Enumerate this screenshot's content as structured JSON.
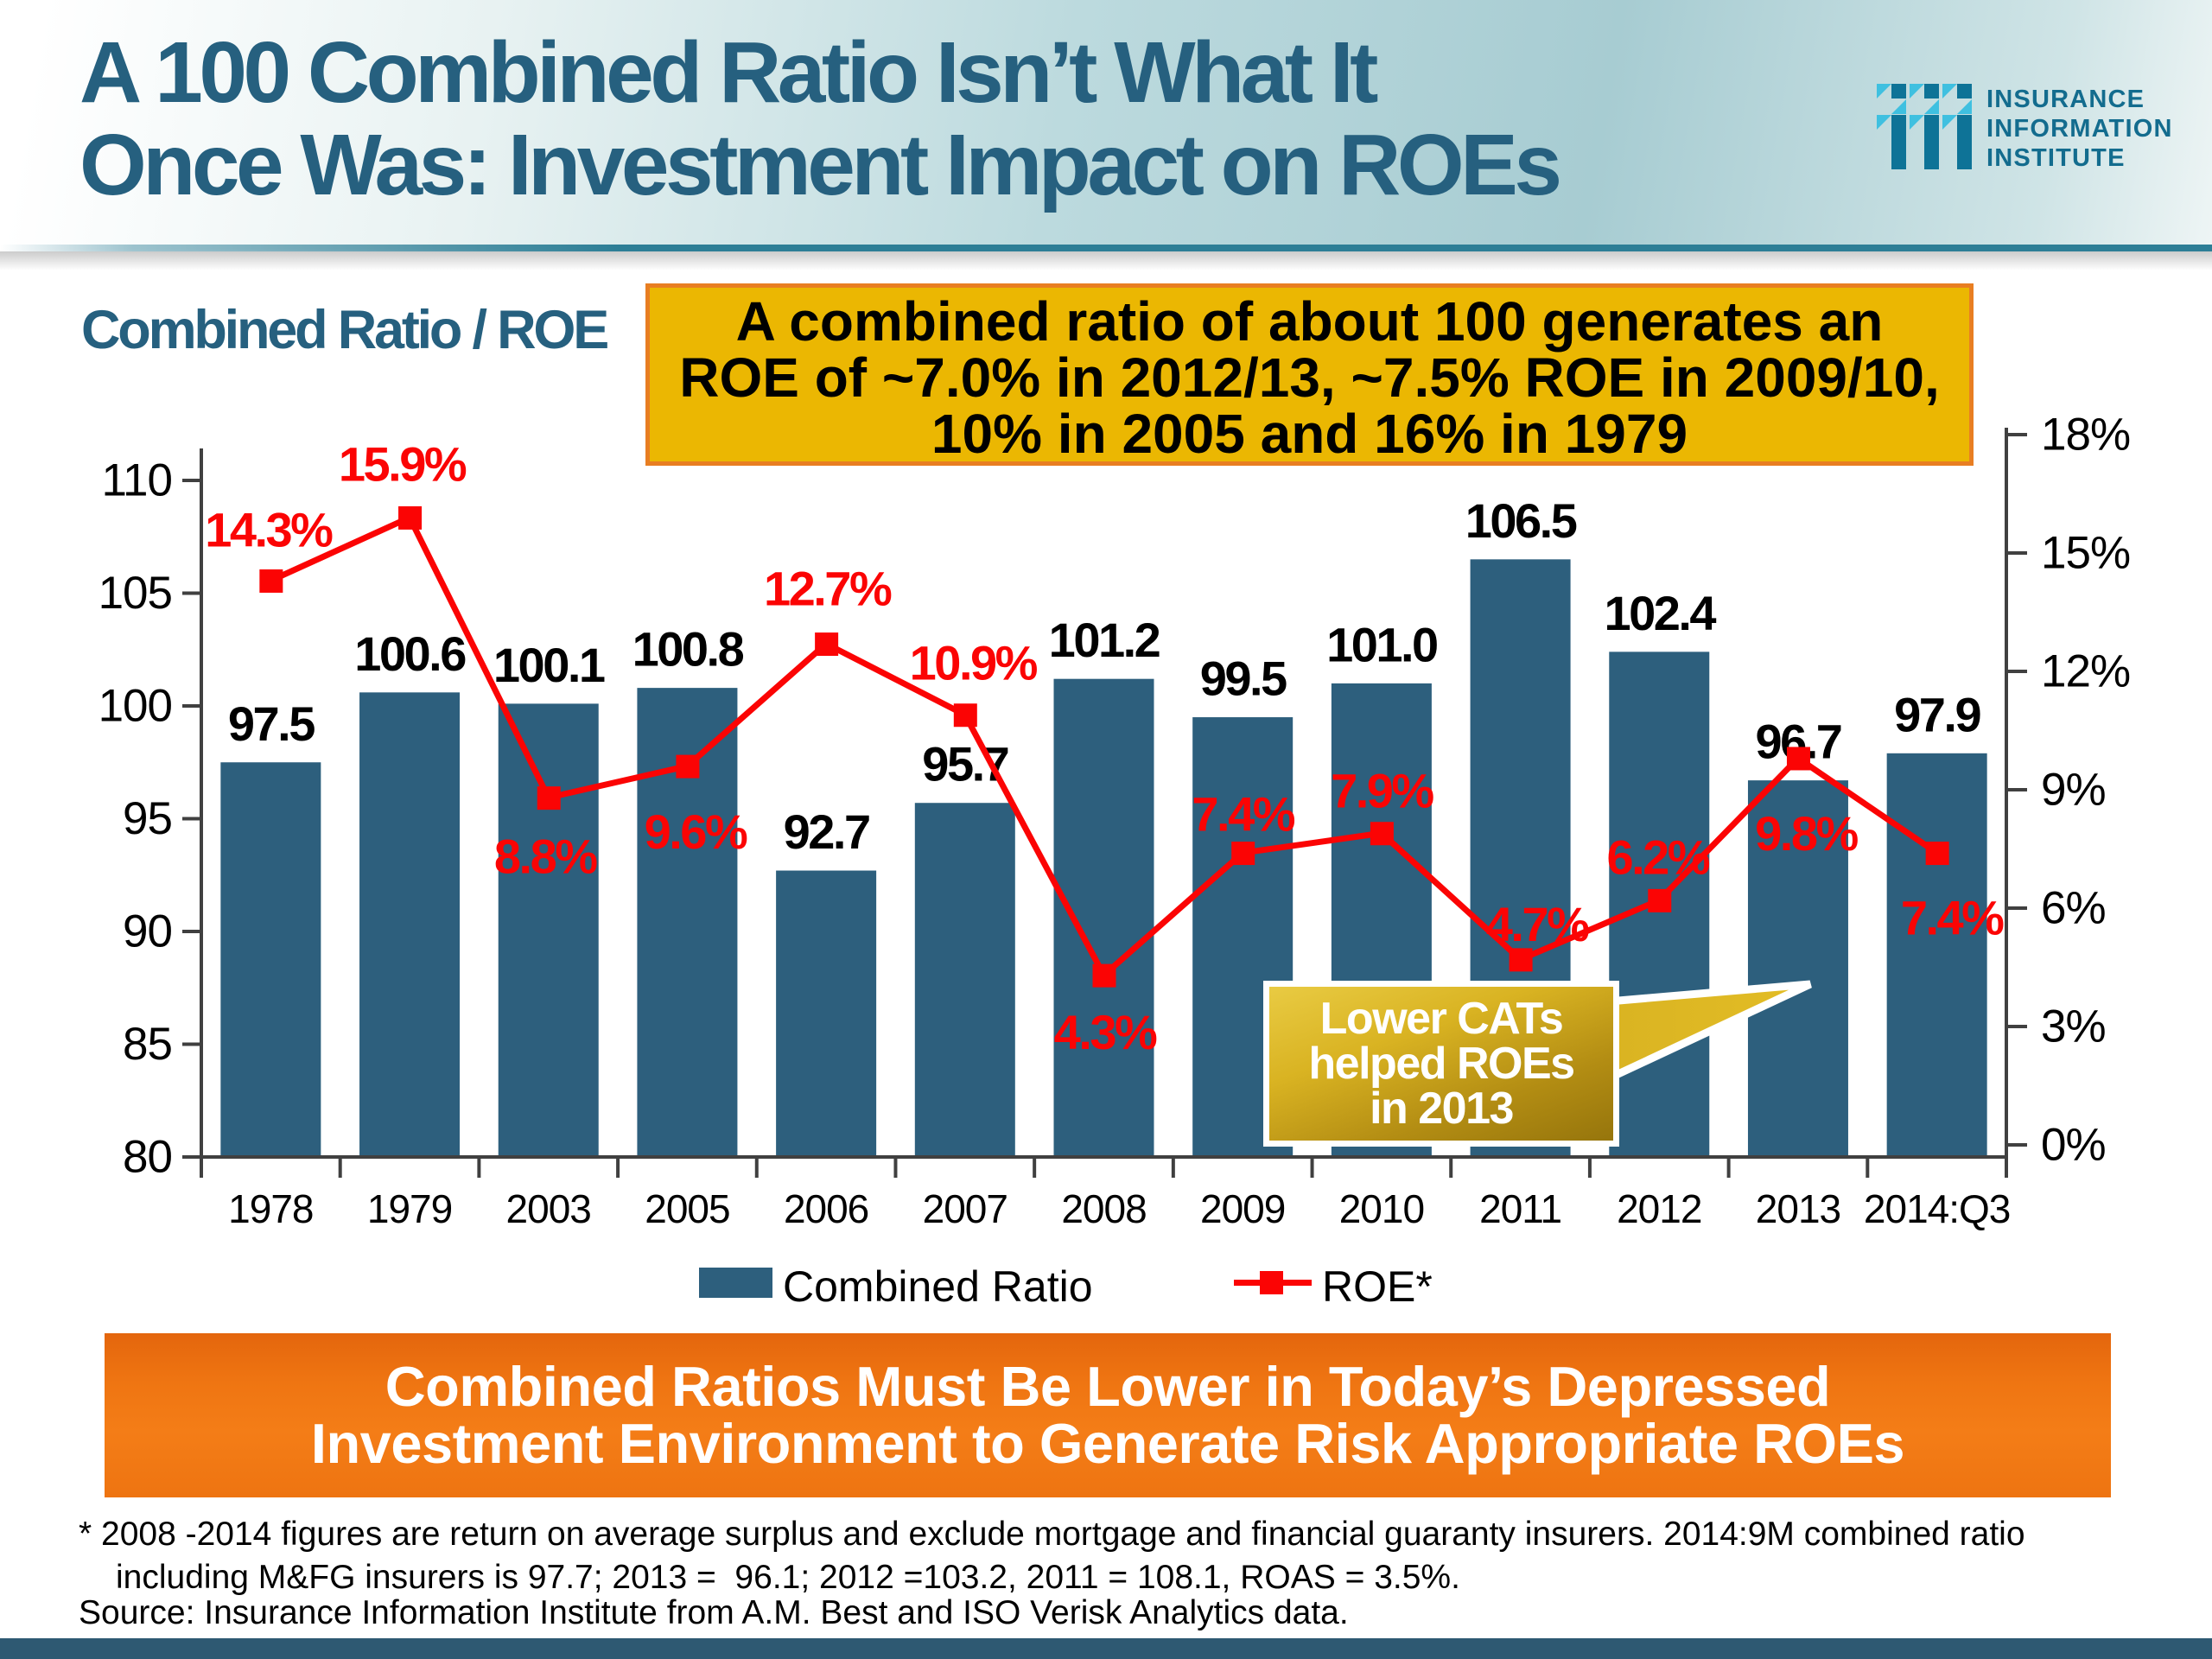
{
  "header": {
    "title_line1": "A 100 Combined Ratio Isn’t What It",
    "title_line2": "Once Was: Investment Impact on ROEs",
    "logo": {
      "line1": "INSURANCE",
      "line2": "INFORMATION",
      "line3": "INSTITUTE"
    }
  },
  "chart": {
    "axis_title": "Combined Ratio / ROE",
    "note": {
      "line1": "A combined ratio of about 100 generates an",
      "line2": "ROE of ~7.0% in 2012/13, ~7.5% ROE in 2009/10,",
      "line3": "10% in 2005 and 16% in 1979"
    },
    "callout": {
      "line1": "Lower CATs",
      "line2": "helped ROEs",
      "line3": "in 2013"
    },
    "legend": {
      "bar_label": "Combined Ratio",
      "line_label": "ROE*"
    }
  },
  "chart_data": {
    "type": "bar",
    "title": "Combined Ratio / ROE",
    "categories": [
      "1978",
      "1979",
      "2003",
      "2005",
      "2006",
      "2007",
      "2008",
      "2009",
      "2010",
      "2011",
      "2012",
      "2013",
      "2014:Q3"
    ],
    "series": [
      {
        "name": "Combined Ratio",
        "type": "bar",
        "axis": "left",
        "values": [
          97.5,
          100.6,
          100.1,
          100.8,
          92.7,
          95.7,
          101.2,
          99.5,
          101.0,
          106.5,
          102.4,
          96.7,
          97.9
        ],
        "labels": [
          "97.5",
          "100.6",
          "100.1",
          "100.8",
          "92.7",
          "95.7",
          "101.2",
          "99.5",
          "101.0",
          "106.5",
          "102.4",
          "96.7",
          "97.9"
        ]
      },
      {
        "name": "ROE*",
        "type": "line",
        "axis": "right",
        "values": [
          14.3,
          15.9,
          8.8,
          9.6,
          12.7,
          10.9,
          4.3,
          7.4,
          7.9,
          4.7,
          6.2,
          9.8,
          7.4
        ],
        "labels": [
          "14.3%",
          "15.9%",
          "8.8%",
          "9.6%",
          "12.7%",
          "10.9%",
          "4.3%",
          "7.4%",
          "7.9%",
          "4.7%",
          "6.2%",
          "9.8%",
          "7.4%"
        ]
      }
    ],
    "left_axis": {
      "min": 80,
      "max": 110,
      "step": 5,
      "tick_labels": [
        "80",
        "85",
        "90",
        "95",
        "100",
        "105",
        "110"
      ]
    },
    "right_axis": {
      "min": 0,
      "max": 18,
      "step": 3,
      "tick_labels": [
        "0%",
        "3%",
        "6%",
        "9%",
        "12%",
        "15%",
        "18%"
      ]
    },
    "legend_position": "bottom",
    "grid": false,
    "colors": {
      "bar": "#2d5f7d",
      "line": "#fb0404",
      "bar_label": "#000000",
      "axis": "#404040"
    }
  },
  "banner": {
    "line1": "Combined Ratios Must Be Lower in Today’s Depressed",
    "line2": "Investment Environment to Generate Risk Appropriate ROEs"
  },
  "footnote": {
    "line1": "* 2008 -2014 figures are return on average surplus and exclude mortgage and financial guaranty insurers. 2014:9M combined ratio",
    "line2": "including M&FG insurers is 97.7; 2013 =  96.1; 2012 =103.2, 2011 = 108.1, ROAS = 3.5%.",
    "line3": "Source: Insurance Information Institute from A.M. Best and ISO Verisk Analytics data."
  }
}
